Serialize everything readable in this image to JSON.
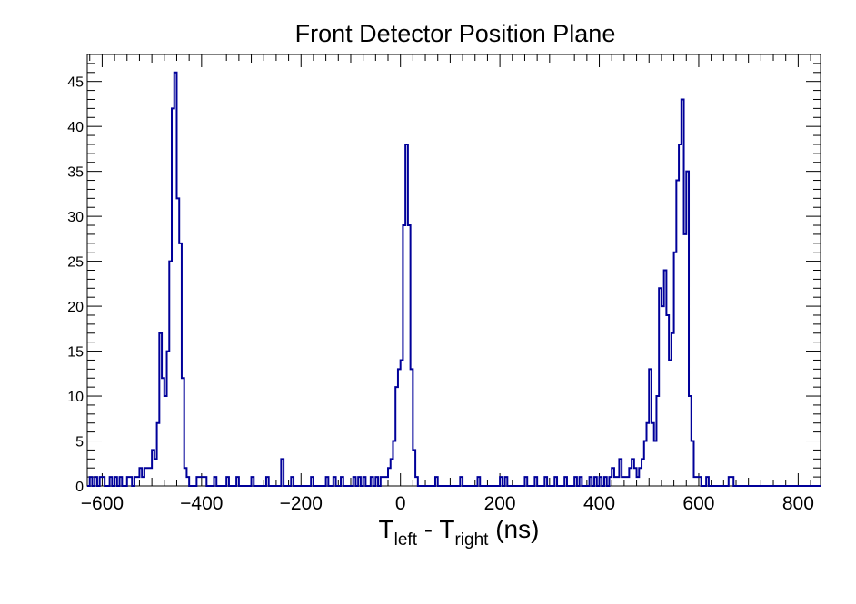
{
  "chart_data": {
    "type": "bar",
    "title": "Front Detector Position Plane",
    "xlabel": {
      "main": "T",
      "sub1": "left",
      "mid": " - T",
      "sub2": "right",
      "unit": "  (ns)"
    },
    "ylabel": "",
    "xlim": [
      -630,
      845
    ],
    "ylim": [
      0,
      48
    ],
    "bin_width": 5,
    "x_ticks": [
      -600,
      -400,
      -200,
      0,
      200,
      400,
      600,
      800
    ],
    "y_ticks": [
      0,
      5,
      10,
      15,
      20,
      25,
      30,
      35,
      40,
      45
    ],
    "line_color": "#000099",
    "bins": [
      [
        -627.5,
        1
      ],
      [
        -617.5,
        1
      ],
      [
        -607.5,
        1
      ],
      [
        -602.5,
        1
      ],
      [
        -587.5,
        1
      ],
      [
        -577.5,
        1
      ],
      [
        -567.5,
        1
      ],
      [
        -552.5,
        1
      ],
      [
        -547.5,
        1
      ],
      [
        -537.5,
        1
      ],
      [
        -532.5,
        1
      ],
      [
        -527.5,
        2
      ],
      [
        -522.5,
        1
      ],
      [
        -517.5,
        2
      ],
      [
        -512.5,
        2
      ],
      [
        -507.5,
        2
      ],
      [
        -502.5,
        4
      ],
      [
        -497.5,
        3
      ],
      [
        -492.5,
        7
      ],
      [
        -487.5,
        17
      ],
      [
        -482.5,
        12
      ],
      [
        -477.5,
        10
      ],
      [
        -472.5,
        15
      ],
      [
        -467.5,
        25
      ],
      [
        -462.5,
        42
      ],
      [
        -457.5,
        46
      ],
      [
        -452.5,
        32
      ],
      [
        -447.5,
        27
      ],
      [
        -442.5,
        12
      ],
      [
        -437.5,
        2
      ],
      [
        -432.5,
        1
      ],
      [
        -412.5,
        1
      ],
      [
        -407.5,
        1
      ],
      [
        -402.5,
        1
      ],
      [
        -397.5,
        1
      ],
      [
        -377.5,
        1
      ],
      [
        -352.5,
        1
      ],
      [
        -332.5,
        1
      ],
      [
        -302.5,
        1
      ],
      [
        -272.5,
        1
      ],
      [
        -242.5,
        3
      ],
      [
        -222.5,
        1
      ],
      [
        -182.5,
        1
      ],
      [
        -152.5,
        1
      ],
      [
        -137.5,
        1
      ],
      [
        -122.5,
        1
      ],
      [
        -97.5,
        1
      ],
      [
        -87.5,
        1
      ],
      [
        -77.5,
        1
      ],
      [
        -62.5,
        1
      ],
      [
        -52.5,
        1
      ],
      [
        -42.5,
        1
      ],
      [
        -37.5,
        1
      ],
      [
        -32.5,
        1
      ],
      [
        -27.5,
        2
      ],
      [
        -22.5,
        3
      ],
      [
        -17.5,
        5
      ],
      [
        -12.5,
        11
      ],
      [
        -7.5,
        13
      ],
      [
        -2.5,
        14
      ],
      [
        2.5,
        29
      ],
      [
        7.5,
        38
      ],
      [
        12.5,
        29
      ],
      [
        17.5,
        13
      ],
      [
        22.5,
        4
      ],
      [
        27.5,
        1
      ],
      [
        67.5,
        1
      ],
      [
        117.5,
        1
      ],
      [
        152.5,
        1
      ],
      [
        197.5,
        1
      ],
      [
        207.5,
        1
      ],
      [
        247.5,
        1
      ],
      [
        267.5,
        1
      ],
      [
        287.5,
        1
      ],
      [
        307.5,
        1
      ],
      [
        327.5,
        1
      ],
      [
        347.5,
        1
      ],
      [
        357.5,
        1
      ],
      [
        377.5,
        1
      ],
      [
        387.5,
        1
      ],
      [
        397.5,
        1
      ],
      [
        407.5,
        1
      ],
      [
        417.5,
        1
      ],
      [
        422.5,
        2
      ],
      [
        427.5,
        1
      ],
      [
        432.5,
        1
      ],
      [
        437.5,
        3
      ],
      [
        442.5,
        1
      ],
      [
        447.5,
        1
      ],
      [
        452.5,
        1
      ],
      [
        457.5,
        2
      ],
      [
        462.5,
        3
      ],
      [
        467.5,
        2
      ],
      [
        472.5,
        1
      ],
      [
        477.5,
        2
      ],
      [
        482.5,
        3
      ],
      [
        487.5,
        5
      ],
      [
        492.5,
        7
      ],
      [
        497.5,
        13
      ],
      [
        502.5,
        7
      ],
      [
        507.5,
        5
      ],
      [
        512.5,
        10
      ],
      [
        517.5,
        22
      ],
      [
        522.5,
        20
      ],
      [
        527.5,
        24
      ],
      [
        532.5,
        19
      ],
      [
        537.5,
        14
      ],
      [
        542.5,
        17
      ],
      [
        547.5,
        26
      ],
      [
        552.5,
        34
      ],
      [
        557.5,
        38
      ],
      [
        562.5,
        43
      ],
      [
        567.5,
        28
      ],
      [
        572.5,
        35
      ],
      [
        577.5,
        10
      ],
      [
        582.5,
        5
      ],
      [
        587.5,
        1
      ],
      [
        592.5,
        1
      ],
      [
        597.5,
        1
      ],
      [
        612.5,
        1
      ],
      [
        657.5,
        1
      ],
      [
        662.5,
        1
      ]
    ]
  }
}
